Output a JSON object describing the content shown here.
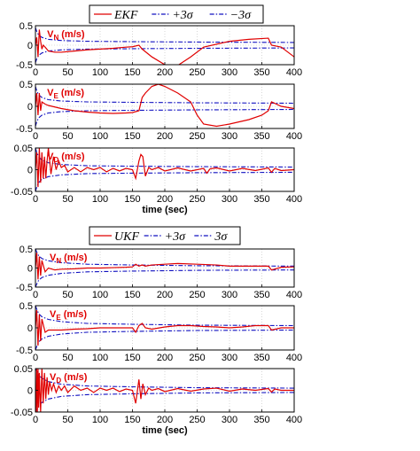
{
  "chart_data": [
    {
      "type": "line",
      "legend": {
        "entries": [
          "EKF",
          "+3σ",
          "−3σ"
        ],
        "placement": "top"
      },
      "panels": [
        {
          "annotation_main": "V",
          "annotation_sub": "N",
          "annotation_unit": "(m/s)",
          "xlim": [
            0,
            400
          ],
          "ylim": [
            -0.5,
            0.5
          ],
          "xticks": [
            "0",
            "50",
            "100",
            "150",
            "200",
            "250",
            "300",
            "350",
            "400"
          ],
          "yticks": [
            {
              "v": 0.5,
              "t": "0.5"
            },
            {
              "v": 0,
              "t": "0"
            },
            {
              "v": -0.5,
              "t": "-0.5"
            }
          ],
          "xlabel": "",
          "error": {
            "x": [
              0,
              2,
              4,
              6,
              8,
              10,
              12,
              15,
              20,
              30,
              40,
              60,
              80,
              100,
              120,
              140,
              150,
              160,
              165,
              180,
              200,
              210,
              220,
              240,
              260,
              300,
              330,
              360,
              365,
              380,
              400
            ],
            "y": [
              0.0,
              0.2,
              -0.3,
              0.4,
              0.1,
              -0.1,
              0.0,
              -0.05,
              -0.15,
              -0.18,
              -0.18,
              -0.15,
              -0.12,
              -0.1,
              -0.08,
              -0.05,
              -0.04,
              0.0,
              -0.1,
              -0.3,
              -0.5,
              -0.55,
              -0.52,
              -0.3,
              -0.05,
              0.1,
              0.15,
              0.18,
              0.0,
              -0.05,
              -0.3
            ]
          },
          "sigma": {
            "x": [
              0,
              2,
              5,
              10,
              20,
              40,
              80,
              150,
              250,
              400
            ],
            "y": [
              0.45,
              0.35,
              0.26,
              0.2,
              0.15,
              0.12,
              0.1,
              0.09,
              0.08,
              0.07
            ]
          }
        },
        {
          "annotation_main": "V",
          "annotation_sub": "E",
          "annotation_unit": "(m/s)",
          "xlim": [
            0,
            400
          ],
          "ylim": [
            -0.5,
            0.5
          ],
          "xticks": [
            "0",
            "50",
            "100",
            "150",
            "200",
            "250",
            "300",
            "350",
            "400"
          ],
          "yticks": [
            {
              "v": 0.5,
              "t": "0.5"
            },
            {
              "v": 0,
              "t": "0"
            },
            {
              "v": -0.5,
              "t": "-0.5"
            }
          ],
          "xlabel": "",
          "error": {
            "x": [
              0,
              2,
              4,
              6,
              8,
              10,
              15,
              20,
              40,
              60,
              80,
              100,
              120,
              140,
              150,
              160,
              165,
              170,
              180,
              190,
              200,
              220,
              240,
              250,
              260,
              280,
              300,
              330,
              350,
              360,
              365,
              380,
              400
            ],
            "y": [
              0.0,
              0.3,
              -0.2,
              0.3,
              -0.1,
              0.1,
              0.05,
              0.02,
              -0.05,
              -0.1,
              -0.13,
              -0.15,
              -0.16,
              -0.15,
              -0.14,
              -0.1,
              0.2,
              0.3,
              0.45,
              0.5,
              0.45,
              0.3,
              0.1,
              -0.2,
              -0.4,
              -0.45,
              -0.4,
              -0.3,
              -0.2,
              -0.1,
              0.1,
              0.0,
              -0.05
            ]
          },
          "sigma": {
            "x": [
              0,
              2,
              5,
              10,
              20,
              40,
              80,
              150,
              250,
              400
            ],
            "y": [
              0.45,
              0.35,
              0.26,
              0.2,
              0.15,
              0.12,
              0.1,
              0.09,
              0.08,
              0.07
            ]
          }
        },
        {
          "annotation_main": "V",
          "annotation_sub": "D",
          "annotation_unit": "(m/s)",
          "xlim": [
            0,
            400
          ],
          "ylim": [
            -0.05,
            0.05
          ],
          "xticks": [
            "0",
            "50",
            "100",
            "150",
            "200",
            "250",
            "300",
            "350",
            "400"
          ],
          "yticks": [
            {
              "v": 0.05,
              "t": "0.05"
            },
            {
              "v": 0,
              "t": "0"
            },
            {
              "v": -0.05,
              "t": "-0.05"
            }
          ],
          "xlabel": "time (sec)",
          "error": {
            "x": [
              0,
              2,
              4,
              6,
              8,
              10,
              12,
              14,
              16,
              18,
              20,
              24,
              28,
              32,
              36,
              40,
              45,
              50,
              60,
              70,
              80,
              90,
              100,
              110,
              120,
              130,
              140,
              150,
              155,
              160,
              163,
              166,
              170,
              175,
              180,
              190,
              200,
              220,
              240,
              260,
              265,
              270,
              280,
              300,
              320,
              340,
              360,
              365,
              370,
              380,
              400
            ],
            "y": [
              0.0,
              0.04,
              -0.04,
              0.05,
              -0.03,
              0.04,
              -0.02,
              0.03,
              -0.02,
              0.02,
              0.05,
              -0.01,
              0.03,
              0.0,
              0.02,
              0.005,
              0.01,
              -0.005,
              0.005,
              -0.005,
              0.005,
              0.0,
              0.005,
              -0.005,
              0.003,
              -0.003,
              0.003,
              0.0,
              -0.02,
              0.02,
              0.035,
              0.03,
              -0.015,
              0.005,
              0.0,
              0.005,
              -0.003,
              0.004,
              -0.003,
              0.003,
              -0.008,
              0.002,
              0.004,
              -0.003,
              0.003,
              -0.002,
              0.004,
              -0.006,
              0.003,
              -0.002,
              0.0
            ]
          },
          "sigma": {
            "x": [
              0,
              2,
              5,
              10,
              20,
              40,
              80,
              150,
              250,
              400
            ],
            "y": [
              0.05,
              0.04,
              0.03,
              0.022,
              0.016,
              0.012,
              0.009,
              0.008,
              0.007,
              0.006
            ]
          }
        }
      ]
    },
    {
      "type": "line",
      "legend": {
        "entries": [
          "UKF",
          "+3σ",
          "3σ"
        ],
        "placement": "top"
      },
      "panels": [
        {
          "annotation_main": "V",
          "annotation_sub": "N",
          "annotation_unit": "(m/s)",
          "xlim": [
            0,
            400
          ],
          "ylim": [
            -0.5,
            0.5
          ],
          "xticks": [
            "0",
            "50",
            "100",
            "150",
            "200",
            "250",
            "300",
            "350",
            "400"
          ],
          "yticks": [
            {
              "v": 0.5,
              "t": "0.5"
            },
            {
              "v": 0,
              "t": "0"
            },
            {
              "v": -0.5,
              "t": "-0.5"
            }
          ],
          "xlabel": "",
          "error": {
            "x": [
              0,
              2,
              4,
              6,
              8,
              10,
              15,
              20,
              30,
              40,
              60,
              80,
              100,
              120,
              140,
              150,
              155,
              160,
              165,
              170,
              180,
              200,
              220,
              250,
              280,
              300,
              330,
              360,
              365,
              380,
              400
            ],
            "y": [
              0.0,
              0.4,
              -0.3,
              0.3,
              -0.2,
              0.2,
              -0.1,
              0.0,
              -0.05,
              -0.03,
              -0.02,
              0.0,
              0.0,
              0.01,
              0.02,
              0.03,
              0.1,
              0.05,
              0.08,
              0.05,
              0.08,
              0.1,
              0.12,
              0.1,
              0.08,
              0.05,
              0.05,
              0.05,
              -0.05,
              0.02,
              0.03
            ]
          },
          "sigma": {
            "x": [
              0,
              2,
              5,
              10,
              20,
              40,
              80,
              150,
              250,
              400
            ],
            "y": [
              0.5,
              0.42,
              0.32,
              0.25,
              0.19,
              0.14,
              0.1,
              0.08,
              0.06,
              0.05
            ]
          }
        },
        {
          "annotation_main": "V",
          "annotation_sub": "E",
          "annotation_unit": "(m/s)",
          "xlim": [
            0,
            400
          ],
          "ylim": [
            -0.5,
            0.5
          ],
          "xticks": [
            "0",
            "50",
            "100",
            "150",
            "200",
            "250",
            "300",
            "350",
            "400"
          ],
          "yticks": [
            {
              "v": 0.5,
              "t": "0.5"
            },
            {
              "v": 0,
              "t": "0"
            },
            {
              "v": -0.5,
              "t": "-0.5"
            }
          ],
          "xlabel": "",
          "error": {
            "x": [
              0,
              2,
              4,
              6,
              8,
              10,
              15,
              20,
              40,
              60,
              80,
              100,
              120,
              140,
              150,
              155,
              160,
              165,
              170,
              180,
              200,
              220,
              240,
              260,
              280,
              300,
              320,
              340,
              360,
              365,
              380,
              400
            ],
            "y": [
              0.0,
              0.4,
              -0.4,
              0.3,
              -0.3,
              0.2,
              -0.1,
              -0.05,
              -0.05,
              -0.03,
              -0.02,
              0.0,
              0.0,
              0.0,
              0.0,
              -0.1,
              0.05,
              0.1,
              0.0,
              -0.03,
              0.02,
              0.05,
              0.05,
              0.03,
              0.02,
              0.0,
              0.02,
              0.05,
              0.05,
              -0.05,
              0.0,
              0.0
            ]
          },
          "sigma": {
            "x": [
              0,
              2,
              5,
              10,
              20,
              40,
              80,
              150,
              250,
              400
            ],
            "y": [
              0.5,
              0.42,
              0.32,
              0.25,
              0.19,
              0.14,
              0.1,
              0.08,
              0.06,
              0.05
            ]
          }
        },
        {
          "annotation_main": "V",
          "annotation_sub": "D",
          "annotation_unit": "(m/s)",
          "xlim": [
            0,
            400
          ],
          "ylim": [
            -0.05,
            0.05
          ],
          "xticks": [
            "0",
            "50",
            "100",
            "150",
            "200",
            "250",
            "300",
            "350",
            "400"
          ],
          "yticks": [
            {
              "v": 0.05,
              "t": "0.05"
            },
            {
              "v": 0,
              "t": "0"
            },
            {
              "v": -0.05,
              "t": "-0.05"
            }
          ],
          "xlabel": "time (sec)",
          "error": {
            "x": [
              0,
              1,
              2,
              3,
              4,
              5,
              6,
              8,
              10,
              12,
              14,
              16,
              18,
              20,
              22,
              25,
              28,
              32,
              36,
              40,
              45,
              50,
              60,
              70,
              80,
              90,
              100,
              110,
              120,
              130,
              140,
              150,
              155,
              160,
              163,
              166,
              170,
              175,
              180,
              190,
              200,
              220,
              240,
              260,
              280,
              300,
              320,
              340,
              360,
              365,
              370,
              380,
              400
            ],
            "y": [
              0.0,
              -0.05,
              0.05,
              -0.05,
              0.05,
              -0.04,
              0.04,
              -0.05,
              0.05,
              -0.03,
              0.04,
              -0.02,
              0.03,
              -0.01,
              0.02,
              0.0,
              0.015,
              -0.005,
              0.01,
              0.0,
              0.01,
              -0.005,
              0.01,
              0.0,
              0.005,
              -0.005,
              0.005,
              0.0,
              0.005,
              -0.003,
              0.003,
              0.0,
              -0.03,
              0.025,
              -0.02,
              0.015,
              -0.01,
              0.005,
              0.0,
              0.004,
              -0.003,
              0.004,
              -0.002,
              0.003,
              0.005,
              -0.002,
              0.003,
              0.0,
              0.004,
              -0.004,
              0.003,
              0.0,
              0.0
            ]
          },
          "sigma": {
            "x": [
              0,
              2,
              5,
              10,
              20,
              40,
              80,
              150,
              250,
              400
            ],
            "y": [
              0.05,
              0.045,
              0.035,
              0.028,
              0.02,
              0.014,
              0.01,
              0.008,
              0.006,
              0.005
            ]
          }
        }
      ]
    }
  ]
}
